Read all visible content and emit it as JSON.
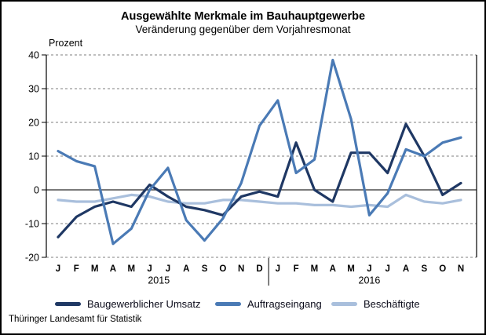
{
  "title": "Ausgewählte Merkmale im Bauhauptgewerbe",
  "subtitle": "Veränderung gegenüber dem Vorjahresmonat",
  "axis_unit": "Prozent",
  "footer": "Thüringer Landesamt für Statistik",
  "chart_data": {
    "type": "line",
    "categories": [
      "J",
      "F",
      "M",
      "A",
      "M",
      "J",
      "J",
      "A",
      "S",
      "O",
      "N",
      "D",
      "J",
      "F",
      "M",
      "A",
      "M",
      "J",
      "J",
      "A",
      "S",
      "O",
      "N"
    ],
    "year_groups": [
      {
        "label": "2015",
        "from": 0,
        "to": 11
      },
      {
        "label": "2016",
        "from": 12,
        "to": 22
      }
    ],
    "ylabel": "Prozent",
    "ylim": [
      -20,
      40
    ],
    "yticks": [
      40,
      30,
      20,
      10,
      0,
      -10,
      -20
    ],
    "grid": "horizontal-dashed",
    "legend_position": "bottom",
    "series": [
      {
        "name": "Baugewerblicher Umsatz",
        "color": "#1f3864",
        "values": [
          -14,
          -8,
          -5,
          -3.5,
          -5,
          1.5,
          -2,
          -5,
          -6,
          -7.5,
          -2,
          -0.5,
          -2,
          14,
          0,
          -3.5,
          11,
          11,
          5,
          19.5,
          10,
          -1.5,
          2
        ]
      },
      {
        "name": "Auftragseingang",
        "color": "#4a7ab5",
        "values": [
          11.5,
          8.5,
          7,
          -16,
          -11.5,
          0,
          6.5,
          -9,
          -15,
          -8.5,
          2,
          19,
          26.5,
          5,
          9,
          38.5,
          21,
          -7.5,
          -1,
          12,
          10,
          14,
          15.5
        ]
      },
      {
        "name": "Beschäftigte",
        "color": "#a9bfdc",
        "values": [
          -3,
          -3.5,
          -3.5,
          -2.5,
          -1.5,
          -2,
          -3.5,
          -4,
          -4,
          -3,
          -3,
          -3.5,
          -4,
          -4,
          -4.5,
          -4.5,
          -5,
          -4.5,
          -5,
          -1.5,
          -3.5,
          -4,
          -3
        ]
      }
    ]
  }
}
